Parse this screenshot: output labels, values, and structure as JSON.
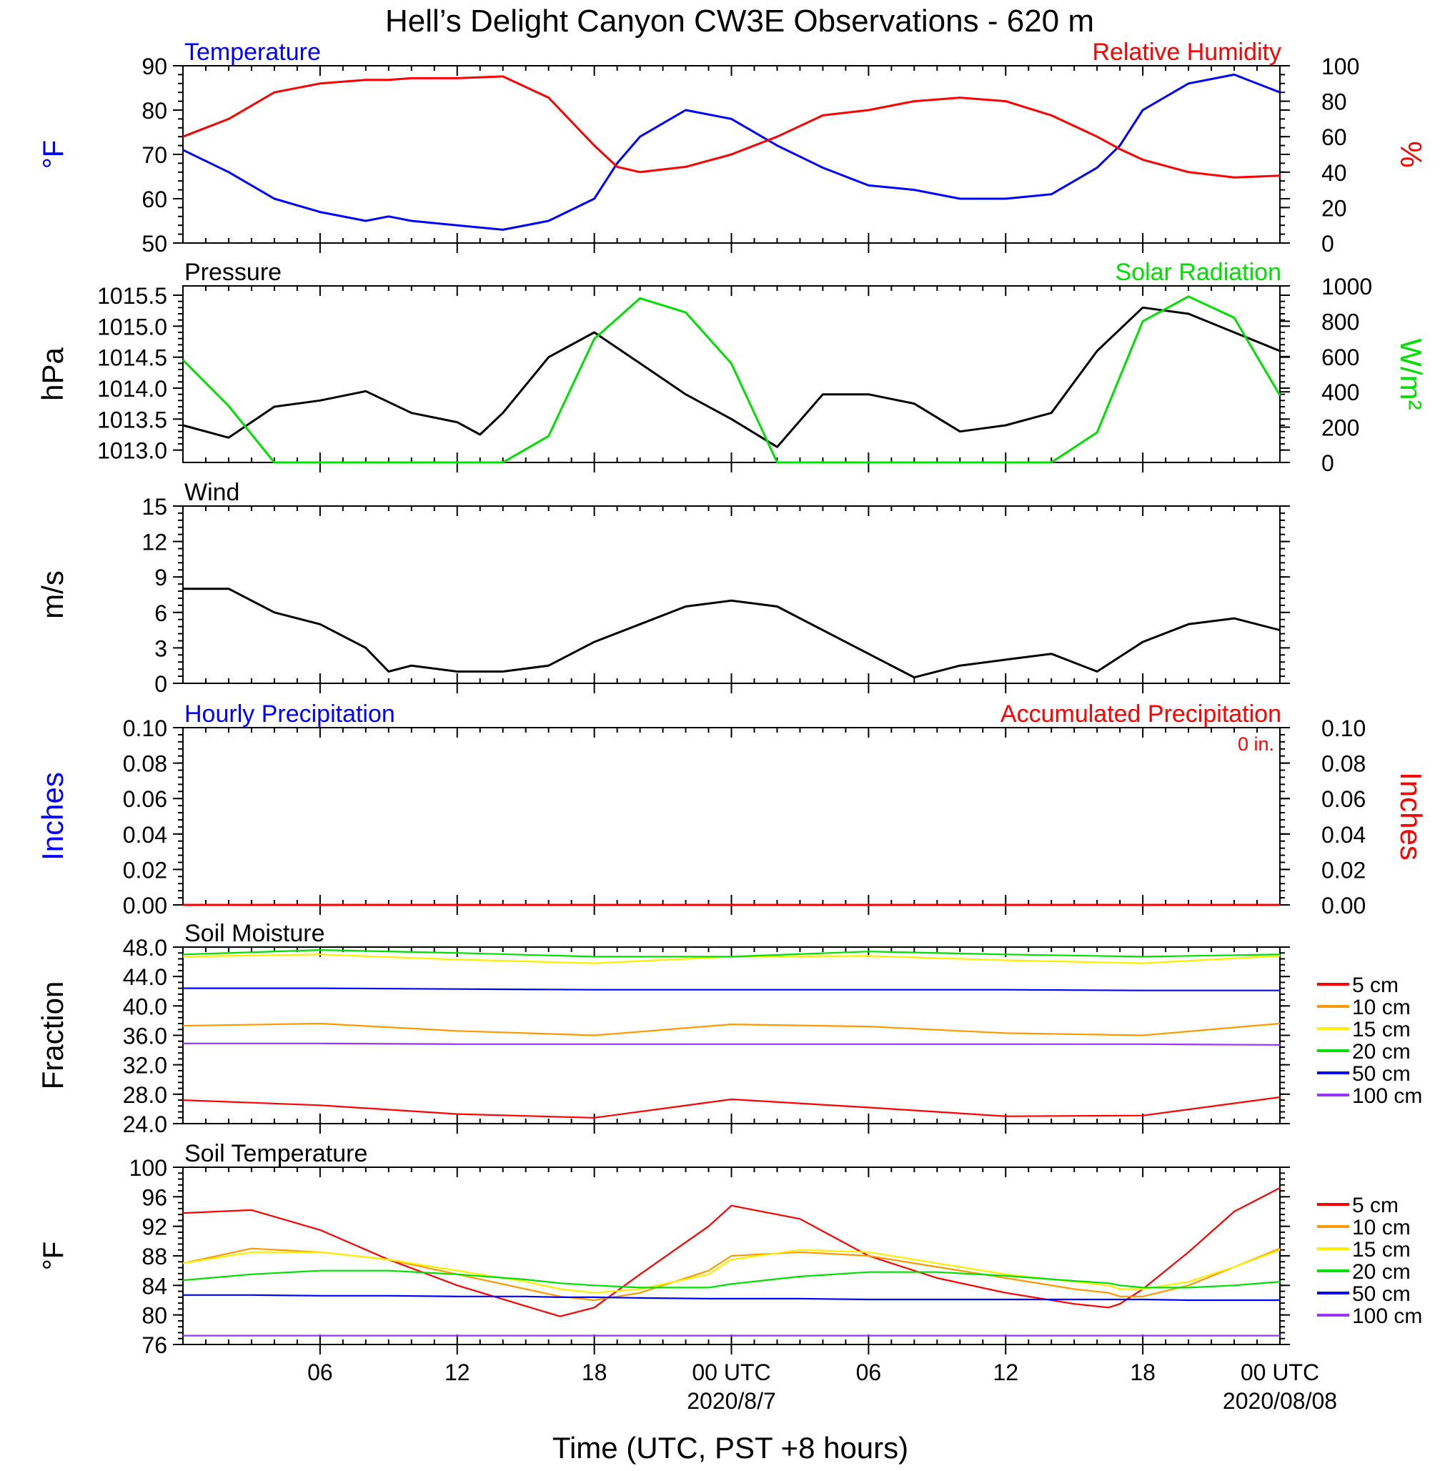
{
  "title": "Hell’s Delight Canyon CW3E Observations - 620 m",
  "xlabel": "Time (UTC, PST +8 hours)",
  "xticks": [
    {
      "label": "06",
      "date": ""
    },
    {
      "label": "12",
      "date": ""
    },
    {
      "label": "18",
      "date": ""
    },
    {
      "label": "00 UTC",
      "date": "2020/8/7"
    },
    {
      "label": "06",
      "date": ""
    },
    {
      "label": "12",
      "date": ""
    },
    {
      "label": "18",
      "date": ""
    },
    {
      "label": "00 UTC",
      "date": "2020/08/08"
    }
  ],
  "colors": {
    "blue": "#0000ff",
    "red": "#ff0000",
    "green": "#00e000",
    "black": "#000000"
  },
  "chart_data": [
    {
      "type": "line",
      "title_left": "Temperature",
      "title_right": "Relative Humidity",
      "ylabel_left": "°F",
      "ylabel_right": "%",
      "ylim_left": [
        50,
        90
      ],
      "ylim_right": [
        0,
        100
      ],
      "yticks_left": [
        "90",
        "80",
        "70",
        "60",
        "50"
      ],
      "yticks_right": [
        "100",
        "80",
        "60",
        "40",
        "20",
        "0"
      ],
      "x_hours": [
        0,
        2,
        4,
        6,
        8,
        9,
        10,
        12,
        14,
        16,
        18,
        19,
        20,
        22,
        24,
        26,
        28,
        30,
        32,
        34,
        36,
        38,
        40,
        41,
        42,
        44,
        46,
        48
      ],
      "series": [
        {
          "name": "Temperature",
          "axis": "left",
          "color": "#0000ff",
          "values": [
            71,
            66,
            60,
            57,
            55,
            56,
            55,
            54,
            53,
            55,
            60,
            68,
            74,
            80,
            78,
            72,
            67,
            63,
            62,
            60,
            60,
            61,
            67,
            72,
            80,
            86,
            88,
            84
          ]
        },
        {
          "name": "Relative Humidity",
          "axis": "right",
          "color": "#ff0000",
          "values": [
            60,
            70,
            85,
            90,
            92,
            92,
            93,
            93,
            94,
            82,
            55,
            43,
            40,
            43,
            50,
            60,
            72,
            75,
            80,
            82,
            80,
            72,
            60,
            53,
            47,
            40,
            37,
            38
          ]
        }
      ]
    },
    {
      "type": "line",
      "title_left": "Pressure",
      "title_right": "Solar Radiation",
      "ylabel_left": "hPa",
      "ylabel_right": "W/m²",
      "ylim_left": [
        1012.8,
        1015.65
      ],
      "ylim_right": [
        0,
        1000
      ],
      "yticks_left": [
        "1015.5",
        "1015.0",
        "1014.5",
        "1014.0",
        "1013.5",
        "1013.0"
      ],
      "yticks_right": [
        "1000",
        "800",
        "600",
        "400",
        "200",
        "0"
      ],
      "x_hours": [
        0,
        2,
        4,
        6,
        8,
        10,
        12,
        13,
        14,
        16,
        18,
        20,
        22,
        24,
        26,
        28,
        30,
        32,
        34,
        36,
        38,
        40,
        42,
        44,
        46,
        48
      ],
      "series": [
        {
          "name": "Pressure",
          "axis": "left",
          "color": "#000000",
          "values": [
            1013.4,
            1013.2,
            1013.7,
            1013.8,
            1013.95,
            1013.6,
            1013.45,
            1013.25,
            1013.6,
            1014.5,
            1014.9,
            1014.4,
            1013.9,
            1013.5,
            1013.05,
            1013.9,
            1013.9,
            1013.75,
            1013.3,
            1013.4,
            1013.6,
            1014.6,
            1015.3,
            1015.2,
            1014.9,
            1014.6
          ]
        },
        {
          "name": "Solar Radiation",
          "axis": "right",
          "color": "#00e000",
          "values": [
            580,
            320,
            0,
            0,
            0,
            0,
            0,
            0,
            0,
            150,
            700,
            930,
            850,
            560,
            0,
            0,
            0,
            0,
            0,
            0,
            0,
            170,
            800,
            940,
            820,
            380
          ]
        }
      ]
    },
    {
      "type": "line",
      "title_left": "Wind",
      "ylabel_left": "m/s",
      "ylim_left": [
        0,
        15
      ],
      "yticks_left": [
        "15",
        "12",
        "9",
        "6",
        "3",
        "0"
      ],
      "x_hours": [
        0,
        2,
        4,
        6,
        8,
        9,
        10,
        12,
        14,
        16,
        18,
        20,
        22,
        24,
        26,
        28,
        30,
        32,
        34,
        36,
        38,
        40,
        42,
        44,
        46,
        48
      ],
      "series": [
        {
          "name": "Wind",
          "axis": "left",
          "color": "#000000",
          "values": [
            8,
            8,
            6,
            5,
            3,
            1,
            1.5,
            1,
            1,
            1.5,
            3.5,
            5,
            6.5,
            7,
            6.5,
            4.5,
            2.5,
            0.5,
            1.5,
            2,
            2.5,
            1,
            3.5,
            5,
            5.5,
            4.5
          ]
        }
      ]
    },
    {
      "type": "line",
      "title_left": "Hourly Precipitation",
      "title_right": "Accumulated Precipitation",
      "annotation": "0 in.",
      "ylabel_left": "Inches",
      "ylabel_right": "Inches",
      "ylim_left": [
        0,
        0.1
      ],
      "ylim_right": [
        0,
        0.1
      ],
      "yticks_left": [
        "0.10",
        "0.08",
        "0.06",
        "0.04",
        "0.02",
        "0.00"
      ],
      "yticks_right": [
        "0.10",
        "0.08",
        "0.06",
        "0.04",
        "0.02",
        "0.00"
      ],
      "x_hours": [
        0,
        48
      ],
      "series": [
        {
          "name": "Accumulated Precipitation",
          "axis": "left",
          "color": "#ff0000",
          "values": [
            0,
            0
          ]
        }
      ]
    },
    {
      "type": "line",
      "title_left": "Soil Moisture",
      "ylabel_left": "Fraction",
      "ylim_left": [
        24,
        48
      ],
      "yticks_left": [
        "48.0",
        "44.0",
        "40.0",
        "36.0",
        "32.0",
        "28.0",
        "24.0"
      ],
      "legend": [
        "5 cm",
        "10 cm",
        "15 cm",
        "20 cm",
        "50 cm",
        "100 cm"
      ],
      "x_hours": [
        0,
        6,
        12,
        18,
        24,
        30,
        36,
        42,
        48
      ],
      "series": [
        {
          "name": "5 cm",
          "axis": "left",
          "color": "#ff0000",
          "values": [
            27.2,
            26.5,
            25.3,
            24.8,
            27.3,
            26.2,
            25.0,
            25.1,
            27.6
          ]
        },
        {
          "name": "10 cm",
          "axis": "left",
          "color": "#ff9900",
          "values": [
            37.3,
            37.6,
            36.6,
            36.0,
            37.5,
            37.2,
            36.3,
            36.0,
            37.6
          ]
        },
        {
          "name": "15 cm",
          "axis": "left",
          "color": "#ffee00",
          "values": [
            46.7,
            47.0,
            46.3,
            45.8,
            46.7,
            46.8,
            46.2,
            45.8,
            46.8
          ]
        },
        {
          "name": "20 cm",
          "axis": "left",
          "color": "#00e000",
          "values": [
            47.0,
            47.6,
            47.2,
            46.7,
            46.7,
            47.4,
            47.0,
            46.7,
            47.0
          ]
        },
        {
          "name": "50 cm",
          "axis": "left",
          "color": "#0000ff",
          "values": [
            42.4,
            42.4,
            42.3,
            42.2,
            42.2,
            42.2,
            42.2,
            42.1,
            42.1
          ]
        },
        {
          "name": "100 cm",
          "axis": "left",
          "color": "#9933ff",
          "values": [
            34.9,
            34.9,
            34.8,
            34.8,
            34.8,
            34.8,
            34.8,
            34.8,
            34.7
          ]
        }
      ]
    },
    {
      "type": "line",
      "title_left": "Soil Temperature",
      "ylabel_left": "°F",
      "ylim_left": [
        76,
        100
      ],
      "yticks_left": [
        "100",
        "96",
        "92",
        "88",
        "84",
        "80",
        "76"
      ],
      "legend": [
        "5 cm",
        "10 cm",
        "15 cm",
        "20 cm",
        "50 cm",
        "100 cm"
      ],
      "x_hours": [
        0,
        3,
        6,
        9,
        12,
        15,
        16.5,
        18,
        20,
        23,
        24,
        27,
        30,
        33,
        36,
        39,
        40.5,
        41,
        42,
        44,
        46,
        48
      ],
      "series": [
        {
          "name": "5 cm",
          "axis": "left",
          "color": "#ff0000",
          "values": [
            93.8,
            94.2,
            91.5,
            87.5,
            84,
            81.2,
            79.8,
            81,
            85.5,
            92,
            94.8,
            93,
            88,
            85,
            83,
            81.5,
            81,
            81.5,
            83.5,
            88.5,
            94,
            97.2
          ]
        },
        {
          "name": "10 cm",
          "axis": "left",
          "color": "#ff9900",
          "values": [
            87,
            89,
            88.5,
            87.5,
            85.5,
            83.5,
            82.5,
            82,
            83,
            86,
            88,
            88.5,
            88,
            86.5,
            85,
            83.5,
            83,
            82.5,
            82.5,
            84,
            86.5,
            89
          ]
        },
        {
          "name": "15 cm",
          "axis": "left",
          "color": "#ffee00",
          "values": [
            87,
            88.5,
            88.5,
            87.5,
            86,
            84.5,
            83.5,
            83,
            83.5,
            85.5,
            87.5,
            88.8,
            88.5,
            87,
            85.5,
            84.5,
            84,
            83.5,
            83.5,
            84.5,
            86.5,
            88.8
          ]
        },
        {
          "name": "20 cm",
          "axis": "left",
          "color": "#00e000",
          "values": [
            84.7,
            85.5,
            86,
            86,
            85.5,
            84.8,
            84.3,
            84,
            83.7,
            83.7,
            84.2,
            85.2,
            85.8,
            85.8,
            85.3,
            84.6,
            84.3,
            84,
            83.7,
            83.7,
            84,
            84.5
          ]
        },
        {
          "name": "50 cm",
          "axis": "left",
          "color": "#0000ff",
          "values": [
            82.7,
            82.7,
            82.6,
            82.6,
            82.5,
            82.5,
            82.4,
            82.4,
            82.3,
            82.2,
            82.2,
            82.2,
            82.1,
            82.1,
            82.1,
            82.1,
            82.1,
            82.1,
            82.1,
            82,
            82,
            82
          ]
        },
        {
          "name": "100 cm",
          "axis": "left",
          "color": "#9933ff",
          "values": [
            77.2,
            77.2,
            77.2,
            77.2,
            77.2,
            77.2,
            77.2,
            77.2,
            77.2,
            77.2,
            77.2,
            77.2,
            77.2,
            77.2,
            77.2,
            77.2,
            77.2,
            77.2,
            77.2,
            77.2,
            77.2,
            77.2
          ]
        }
      ]
    }
  ]
}
